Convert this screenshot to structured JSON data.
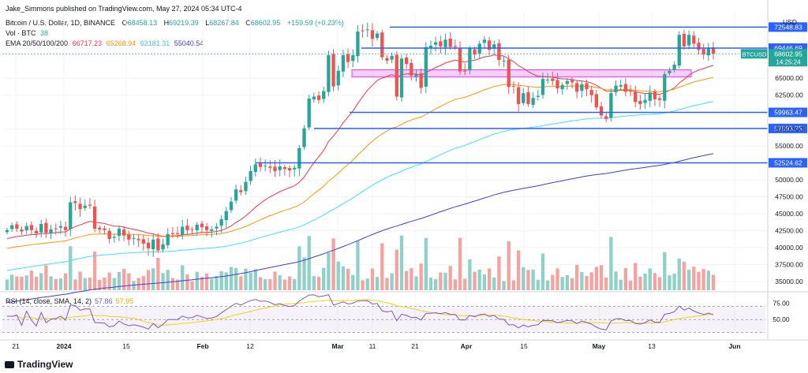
{
  "header": {
    "publisher": "Jake_Simmons published on TradingView.com, May 27, 2024 05:34 UTC-4",
    "symbol": "Bitcoin / U.S. Dollar, 1D, BINANCE",
    "ohlc": {
      "o_label": "O",
      "o": "68458.13",
      "h_label": "H",
      "h": "69219.39",
      "l_label": "L",
      "l": "68267.84",
      "c_label": "C",
      "c": "68602.95",
      "change": "+159.59 (+0.23%)"
    },
    "vol_label": "Vol · BTC",
    "vol_value": "38",
    "ema_label": "EMA 20/50/100/200",
    "ema_values": [
      "66717.23",
      "65268.94",
      "62181.31",
      "55040.54"
    ]
  },
  "colors": {
    "up": "#26a69a",
    "down": "#ef5350",
    "up_vol": "#8fd0c8",
    "down_vol": "#f5a3a0",
    "level": "#2962ff",
    "ema20": "#f23645",
    "ema50": "#ff9800",
    "ema100": "#40e0ff",
    "ema200": "#3f3fd0",
    "rsi": "#7e57c2",
    "rsi_sma": "#f5d20a",
    "zone": "#e040fb"
  },
  "chart_data": {
    "type": "candlestick",
    "currency_label": "USD",
    "price_axis_ticks": [
      65000,
      62500,
      57500,
      55000,
      50000,
      47500,
      45000,
      42500,
      40000,
      37500,
      35000
    ],
    "price_range": [
      33500,
      74800
    ],
    "time_axis_labels": [
      "21",
      "2024",
      "15",
      "Feb",
      "12",
      "Mar",
      "11",
      "21",
      "Apr",
      "15",
      "May",
      "13",
      "Jun"
    ],
    "levels": [
      72548.83,
      69446.69,
      59963.47,
      57593.75,
      52524.62
    ],
    "current_price": {
      "symbol": "BTCUSD",
      "value": "68602.95",
      "countdown": "14:25:24"
    },
    "highlight_zone": [
      65300,
      65900
    ],
    "closes": [
      42600,
      43300,
      42800,
      42400,
      43200,
      42600,
      42100,
      43500,
      42200,
      42700,
      42800,
      43200,
      42600,
      46700,
      46600,
      45700,
      46200,
      46200,
      42800,
      42700,
      42600,
      41300,
      41600,
      42800,
      41800,
      41200,
      41400,
      41100,
      40600,
      39900,
      41200,
      39600,
      40500,
      42000,
      42000,
      42000,
      43100,
      42600,
      42700,
      43400,
      43000,
      42600,
      42700,
      43100,
      44200,
      45400,
      46800,
      48600,
      48200,
      49700,
      51300,
      52300,
      51900,
      52100,
      51800,
      51300,
      52000,
      51600,
      51400,
      51800,
      54700,
      57600,
      62000,
      62300,
      61800,
      63100,
      68400,
      63800,
      66100,
      68400,
      67400,
      68400,
      71900,
      72000,
      72200,
      70800,
      71600,
      68100,
      67600,
      68300,
      62300,
      67900,
      67100,
      65400,
      65600,
      63600,
      69600,
      69800,
      70300,
      69700,
      70700,
      69600,
      69600,
      66000,
      66000,
      69400,
      68500,
      70100,
      70700,
      69200,
      70000,
      67700,
      67600,
      63700,
      63800,
      61200,
      62800,
      61200,
      62100,
      62400,
      64900,
      64800,
      64600,
      63500,
      64000,
      64600,
      64400,
      63000,
      64100,
      63400,
      62500,
      60700,
      59500,
      59000,
      62800,
      63900,
      64000,
      63000,
      63100,
      61500,
      61200,
      61800,
      62900,
      61900,
      61800,
      65600,
      66100,
      67000,
      71400,
      69700,
      71400,
      70100,
      69200,
      68500,
      69400,
      68600
    ]
  },
  "volume": {
    "label": "Vol"
  },
  "rsi": {
    "label": "RSI (14, close, SMA, 14, 2)",
    "value": "57.86",
    "sma_value": "57.95",
    "ticks": [
      "75.00",
      "50.00"
    ]
  },
  "footer": {
    "brand": "TradingView"
  }
}
